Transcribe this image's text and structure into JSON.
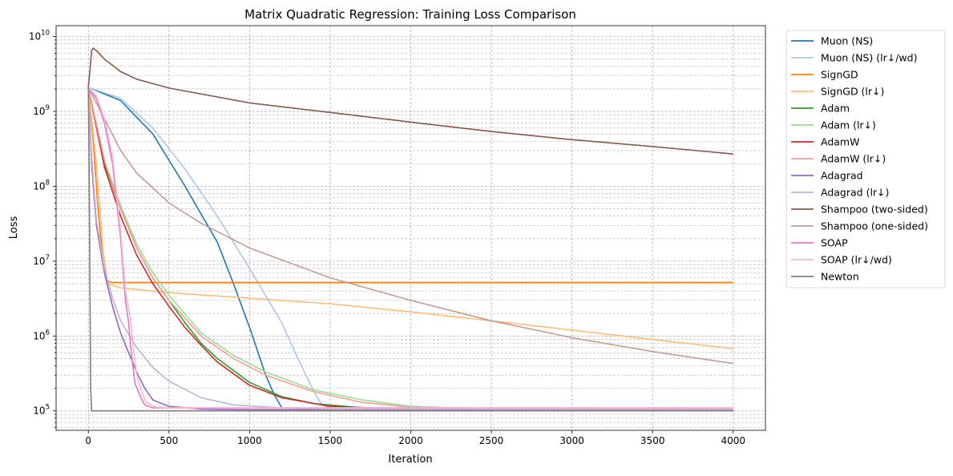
{
  "chart_data": {
    "type": "line",
    "title": "Matrix Quadratic Regression: Training Loss Comparison",
    "xlabel": "Iteration",
    "ylabel": "Loss",
    "yscale": "log",
    "xlim": [
      -200,
      4200
    ],
    "ylim": [
      55000,
      14000000000
    ],
    "grid": "major and minor, dashed",
    "legend_position": "outside-right, top",
    "x_ticks": [
      0,
      500,
      1000,
      1500,
      2000,
      2500,
      3000,
      3500,
      4000
    ],
    "x_tick_labels": [
      "0",
      "500",
      "1000",
      "1500",
      "2000",
      "2500",
      "3000",
      "3500",
      "4000"
    ],
    "y_ticks": [
      100000,
      1000000,
      10000000,
      100000000,
      1000000000,
      10000000000
    ],
    "y_tick_labels": [
      {
        "base": "10",
        "exp": "5"
      },
      {
        "base": "10",
        "exp": "6"
      },
      {
        "base": "10",
        "exp": "7"
      },
      {
        "base": "10",
        "exp": "8"
      },
      {
        "base": "10",
        "exp": "9"
      },
      {
        "base": "10",
        "exp": "10"
      }
    ],
    "series": [
      {
        "name": "Muon (NS)",
        "color": "#1f77b4",
        "points": [
          [
            0,
            2100000000
          ],
          [
            200,
            1400000000
          ],
          [
            400,
            500000000
          ],
          [
            600,
            100000000
          ],
          [
            800,
            18000000
          ],
          [
            900,
            5000000
          ],
          [
            1000,
            1300000
          ],
          [
            1100,
            300000
          ],
          [
            1150,
            170000
          ],
          [
            1200,
            110000
          ]
        ]
      },
      {
        "name": "Muon (NS) (lr↓/wd)",
        "color": "#aec7e8",
        "points": [
          [
            0,
            2100000000
          ],
          [
            200,
            1500000000
          ],
          [
            400,
            600000000
          ],
          [
            600,
            170000000
          ],
          [
            800,
            40000000
          ],
          [
            1000,
            8000000
          ],
          [
            1200,
            1500000
          ],
          [
            1300,
            500000
          ],
          [
            1400,
            180000
          ],
          [
            1450,
            120000
          ],
          [
            1500,
            110000
          ]
        ]
      },
      {
        "name": "SignGD",
        "color": "#ff7f0e",
        "points": [
          [
            0,
            2100000000
          ],
          [
            30,
            400000000
          ],
          [
            60,
            50000000
          ],
          [
            90,
            10000000
          ],
          [
            110,
            5600000
          ],
          [
            140,
            5200000
          ],
          [
            300,
            5200000
          ],
          [
            4000,
            5200000
          ]
        ]
      },
      {
        "name": "SignGD (lr↓)",
        "color": "#ffbb78",
        "points": [
          [
            0,
            2100000000
          ],
          [
            50,
            200000000
          ],
          [
            90,
            15000000
          ],
          [
            120,
            5000000
          ],
          [
            200,
            4400000
          ],
          [
            500,
            3800000
          ],
          [
            1000,
            3200000
          ],
          [
            1500,
            2700000
          ],
          [
            2000,
            2100000
          ],
          [
            2500,
            1600000
          ],
          [
            3000,
            1200000
          ],
          [
            3500,
            900000
          ],
          [
            4000,
            680000
          ]
        ]
      },
      {
        "name": "Adam",
        "color": "#2ca02c",
        "points": [
          [
            0,
            2100000000
          ],
          [
            100,
            200000000
          ],
          [
            200,
            50000000
          ],
          [
            300,
            15000000
          ],
          [
            400,
            6000000
          ],
          [
            500,
            3000000
          ],
          [
            600,
            1500000
          ],
          [
            700,
            800000
          ],
          [
            800,
            500000
          ],
          [
            1000,
            240000
          ],
          [
            1200,
            155000
          ],
          [
            1400,
            125000
          ],
          [
            1700,
            110000
          ],
          [
            2000,
            106000
          ],
          [
            4000,
            104000
          ]
        ]
      },
      {
        "name": "Adam (lr↓)",
        "color": "#98df8a",
        "points": [
          [
            0,
            2100000000
          ],
          [
            100,
            220000000
          ],
          [
            200,
            55000000
          ],
          [
            300,
            17000000
          ],
          [
            400,
            7000000
          ],
          [
            500,
            3500000
          ],
          [
            700,
            1100000
          ],
          [
            900,
            550000
          ],
          [
            1100,
            330000
          ],
          [
            1400,
            190000
          ],
          [
            1700,
            140000
          ],
          [
            2000,
            115000
          ],
          [
            2500,
            106000
          ],
          [
            4000,
            104000
          ]
        ]
      },
      {
        "name": "AdamW",
        "color": "#d62728",
        "points": [
          [
            0,
            2100000000
          ],
          [
            100,
            180000000
          ],
          [
            200,
            40000000
          ],
          [
            300,
            12000000
          ],
          [
            400,
            5000000
          ],
          [
            500,
            2500000
          ],
          [
            600,
            1300000
          ],
          [
            700,
            750000
          ],
          [
            800,
            450000
          ],
          [
            1000,
            220000
          ],
          [
            1200,
            150000
          ],
          [
            1500,
            115000
          ],
          [
            2000,
            105000
          ],
          [
            4000,
            104000
          ]
        ]
      },
      {
        "name": "AdamW (lr↓)",
        "color": "#ff9896",
        "points": [
          [
            0,
            2100000000
          ],
          [
            100,
            220000000
          ],
          [
            200,
            50000000
          ],
          [
            300,
            15000000
          ],
          [
            400,
            6000000
          ],
          [
            500,
            3000000
          ],
          [
            700,
            1000000
          ],
          [
            900,
            500000
          ],
          [
            1100,
            300000
          ],
          [
            1400,
            180000
          ],
          [
            1700,
            130000
          ],
          [
            2000,
            112000
          ],
          [
            2500,
            106000
          ],
          [
            4000,
            104000
          ]
        ]
      },
      {
        "name": "Adagrad",
        "color": "#9467bd",
        "points": [
          [
            0,
            2100000000
          ],
          [
            20,
            200000000
          ],
          [
            50,
            30000000
          ],
          [
            100,
            7000000
          ],
          [
            150,
            2500000
          ],
          [
            200,
            1100000
          ],
          [
            250,
            600000
          ],
          [
            300,
            330000
          ],
          [
            350,
            200000
          ],
          [
            400,
            140000
          ],
          [
            500,
            115000
          ],
          [
            700,
            106000
          ],
          [
            1000,
            104000
          ],
          [
            4000,
            104000
          ]
        ]
      },
      {
        "name": "Adagrad (lr↓)",
        "color": "#c5b0d5",
        "points": [
          [
            0,
            2100000000
          ],
          [
            20,
            250000000
          ],
          [
            50,
            35000000
          ],
          [
            100,
            8000000
          ],
          [
            150,
            3200000
          ],
          [
            200,
            1600000
          ],
          [
            300,
            700000
          ],
          [
            400,
            380000
          ],
          [
            500,
            250000
          ],
          [
            700,
            150000
          ],
          [
            900,
            120000
          ],
          [
            1200,
            110000
          ],
          [
            1500,
            106000
          ],
          [
            4000,
            104000
          ]
        ]
      },
      {
        "name": "Shampoo (two-sided)",
        "color": "#8c564b",
        "points": [
          [
            0,
            2100000000
          ],
          [
            10,
            3500000000
          ],
          [
            20,
            6500000000
          ],
          [
            30,
            7000000000
          ],
          [
            50,
            6500000000
          ],
          [
            100,
            5000000000
          ],
          [
            200,
            3400000000
          ],
          [
            300,
            2700000000
          ],
          [
            500,
            2050000000
          ],
          [
            1000,
            1300000000
          ],
          [
            1500,
            970000000
          ],
          [
            2000,
            720000000
          ],
          [
            2500,
            540000000
          ],
          [
            3000,
            420000000
          ],
          [
            3500,
            340000000
          ],
          [
            4000,
            270000000
          ]
        ]
      },
      {
        "name": "Shampoo (one-sided)",
        "color": "#c49c94",
        "points": [
          [
            0,
            2100000000
          ],
          [
            100,
            800000000
          ],
          [
            200,
            300000000
          ],
          [
            300,
            150000000
          ],
          [
            500,
            60000000
          ],
          [
            700,
            32000000
          ],
          [
            1000,
            15000000
          ],
          [
            1500,
            6000000
          ],
          [
            2000,
            3000000
          ],
          [
            2500,
            1600000
          ],
          [
            3000,
            950000
          ],
          [
            3500,
            620000
          ],
          [
            4000,
            430000
          ]
        ]
      },
      {
        "name": "SOAP",
        "color": "#e377c2",
        "points": [
          [
            0,
            2100000000
          ],
          [
            50,
            1500000000
          ],
          [
            100,
            700000000
          ],
          [
            150,
            200000000
          ],
          [
            200,
            20000000
          ],
          [
            230,
            3000000
          ],
          [
            250,
            1500000
          ],
          [
            270,
            500000
          ],
          [
            290,
            230000
          ],
          [
            320,
            160000
          ],
          [
            350,
            120000
          ],
          [
            400,
            110000
          ],
          [
            500,
            110000
          ],
          [
            4000,
            110000
          ]
        ]
      },
      {
        "name": "SOAP (lr↓/wd)",
        "color": "#f7b6d2",
        "points": [
          [
            0,
            2100000000
          ],
          [
            50,
            1600000000
          ],
          [
            100,
            800000000
          ],
          [
            150,
            250000000
          ],
          [
            200,
            25000000
          ],
          [
            230,
            4000000
          ],
          [
            260,
            1800000
          ],
          [
            280,
            700000
          ],
          [
            300,
            300000
          ],
          [
            330,
            180000
          ],
          [
            360,
            130000
          ],
          [
            420,
            112000
          ],
          [
            500,
            110000
          ],
          [
            4000,
            110000
          ]
        ]
      },
      {
        "name": "Newton",
        "color": "#7f7f7f",
        "points": [
          [
            0,
            2100000000
          ],
          [
            5,
            200000000
          ],
          [
            10,
            5000000
          ],
          [
            15,
            200000
          ],
          [
            20,
            100000
          ],
          [
            4000,
            100000
          ]
        ]
      }
    ]
  }
}
